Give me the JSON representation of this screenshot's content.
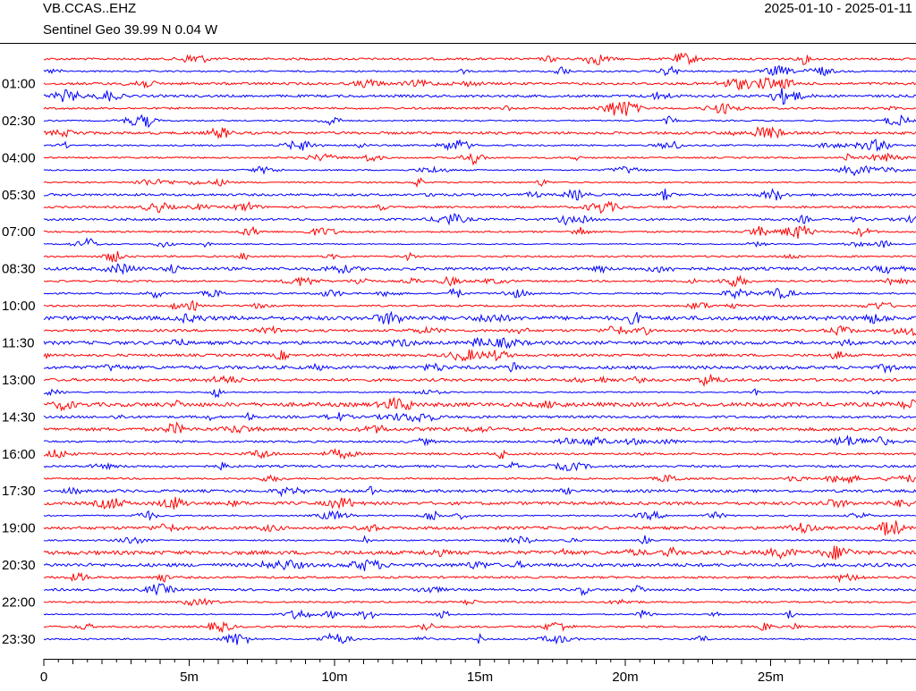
{
  "chart_data": {
    "type": "helicorder",
    "title": "VB.CCAS..EHZ",
    "subtitle": "Sentinel Geo  39.99 N 0.04 W",
    "date_range": "2025-01-10 - 2025-01-11",
    "colors": [
      "#ff0000",
      "#0000ff"
    ],
    "xlim": [
      0,
      30
    ],
    "xticks": [
      0,
      {
        "value": 5,
        "label": "5m"
      },
      {
        "value": 10,
        "label": "10m"
      },
      {
        "value": 15,
        "label": "15m"
      },
      {
        "value": 20,
        "label": "20m"
      },
      {
        "value": 25,
        "label": "25m"
      }
    ],
    "ylim": [
      -1.3,
      48.6
    ],
    "yticks": [
      {
        "value": 2,
        "label": "01:00"
      },
      {
        "value": 5,
        "label": "02:30"
      },
      {
        "value": 8,
        "label": "04:00"
      },
      {
        "value": 11,
        "label": "05:30"
      },
      {
        "value": 14,
        "label": "07:00"
      },
      {
        "value": 17,
        "label": "08:30"
      },
      {
        "value": 20,
        "label": "10:00"
      },
      {
        "value": 23,
        "label": "11:30"
      },
      {
        "value": 26,
        "label": "13:00"
      },
      {
        "value": 29,
        "label": "14:30"
      },
      {
        "value": 32,
        "label": "16:00"
      },
      {
        "value": 35,
        "label": "17:30"
      },
      {
        "value": 38,
        "label": "19:00"
      },
      {
        "value": 41,
        "label": "20:30"
      },
      {
        "value": 44,
        "label": "22:00"
      },
      {
        "value": 47,
        "label": "23:30"
      }
    ]
  }
}
